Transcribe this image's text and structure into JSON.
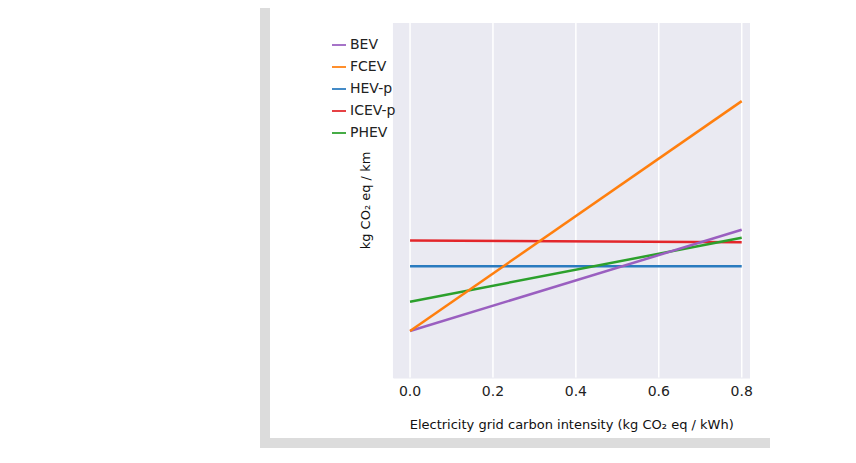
{
  "chart_data": {
    "type": "line",
    "x_label": "Electricity grid carbon intensity (kg CO₂ eq / kWh)",
    "y_label": "kg CO₂ eq / km",
    "xlim": [
      -0.04,
      0.82
    ],
    "xticks": [
      {
        "value": 0,
        "label": "0.0"
      },
      {
        "value": 0.2,
        "label": "0.2"
      },
      {
        "value": 0.4,
        "label": "0.4"
      },
      {
        "value": 0.6,
        "label": "0.6"
      },
      {
        "value": 0.8,
        "label": "0.8"
      }
    ],
    "ylim": [
      0.05,
      0.45
    ],
    "yticks": [
      0.1,
      0.2,
      0.3,
      0.4
    ],
    "tick_labels": "x",
    "grid": true,
    "legend": "upper left",
    "x": [
      0,
      0.8
    ],
    "series": [
      {
        "name": "ICEV-p",
        "color": "#e3262b",
        "values": [
          0.205,
          0.203
        ]
      },
      {
        "name": "HEV-p",
        "color": "#2a7bbf",
        "values": [
          0.176,
          0.176
        ]
      },
      {
        "name": "PHEV",
        "color": "#2ca02c",
        "values": [
          0.136,
          0.208
        ]
      },
      {
        "name": "BEV",
        "color": "#9a5fc0",
        "values": [
          0.103,
          0.217
        ]
      },
      {
        "name": "FCEV",
        "color": "#ff7f0e",
        "values": [
          0.103,
          0.362
        ]
      }
    ]
  }
}
